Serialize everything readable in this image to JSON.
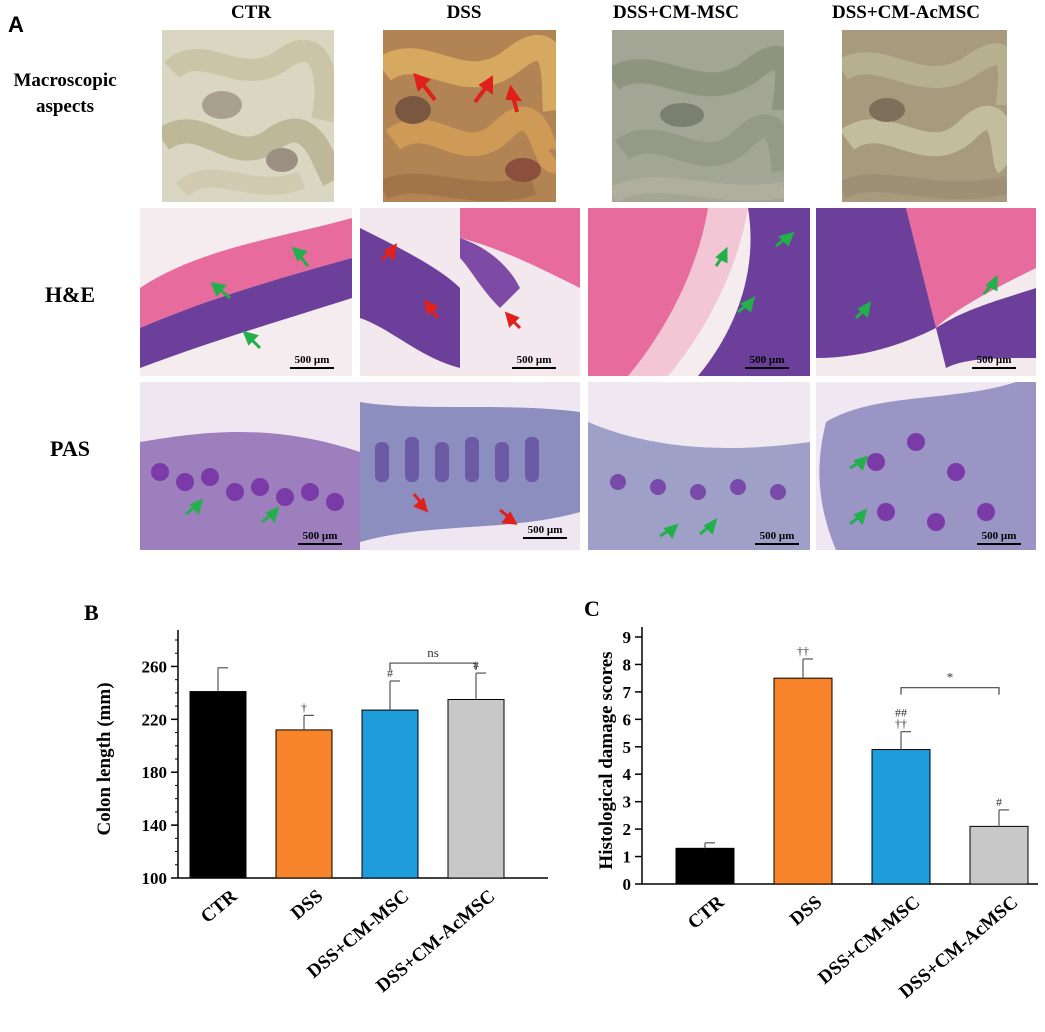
{
  "panel_a": {
    "letter": "A",
    "columns": [
      "CTR",
      "DSS",
      "DSS+CM-MSC",
      "DSS+CM-AcMSC"
    ],
    "rows": [
      {
        "label": "Macroscopic\naspects"
      },
      {
        "label": "H&E",
        "scale": [
          "500 µm",
          "500 µm",
          "500 µm",
          "500 µm"
        ]
      },
      {
        "label": "PAS",
        "scale": [
          "500 µm",
          "500 µm",
          "500 µm",
          "500 µm"
        ]
      }
    ],
    "colors": {
      "red_arrow": "#e0211b",
      "green_arrow": "#22b04b",
      "he_pink": "#e86b9d",
      "he_purple": "#6b3f9a",
      "pas_purple": "#7a3aa8"
    }
  },
  "chart_data": [
    {
      "type": "bar",
      "panel_letter": "B",
      "categories": [
        "CTR",
        "DSS",
        "DSS+CM-MSC",
        "DSS+CM-AcMSC"
      ],
      "values": [
        241,
        212,
        227,
        235
      ],
      "errors": [
        18,
        11,
        22,
        20
      ],
      "colors": [
        "#000000",
        "#f7842a",
        "#1f9ddb",
        "#c8c8c8"
      ],
      "sig_marks": [
        "",
        "†",
        "#",
        "#"
      ],
      "bracket": {
        "from": 2,
        "to": 3,
        "label": "ns"
      },
      "ylabel": "Colon length (mm)",
      "ylim": [
        100,
        280
      ],
      "yticks": [
        100,
        140,
        180,
        220,
        260
      ]
    },
    {
      "type": "bar",
      "panel_letter": "C",
      "categories": [
        "CTR",
        "DSS",
        "DSS+CM-MSC",
        "DSS+CM-AcMSC"
      ],
      "values": [
        1.3,
        7.5,
        4.9,
        2.1
      ],
      "errors": [
        0.2,
        0.7,
        0.65,
        0.6
      ],
      "colors": [
        "#000000",
        "#f7842a",
        "#1f9ddb",
        "#c8c8c8"
      ],
      "sig_marks": [
        "",
        "††",
        "##\n††",
        "#"
      ],
      "bracket": {
        "from": 2,
        "to": 3,
        "label": "*"
      },
      "ylabel": "Histological damage scores",
      "ylim": [
        0,
        9
      ],
      "yticks": [
        0,
        1,
        2,
        3,
        4,
        5,
        6,
        7,
        8,
        9
      ]
    }
  ]
}
